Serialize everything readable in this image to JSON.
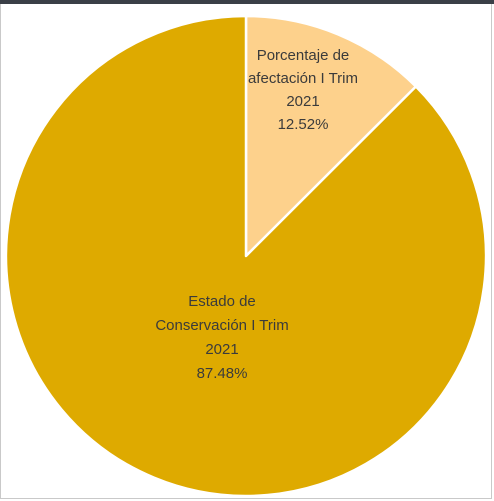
{
  "chart_data": {
    "type": "pie",
    "title": "",
    "slices": [
      {
        "label_lines": [
          "Porcentaje de",
          "afectación I Trim",
          "2021"
        ],
        "value_label": "12.52%",
        "value": 12.52,
        "color": "#fdd18c"
      },
      {
        "label_lines": [
          "Estado de",
          "Conservación I Trim",
          "2021"
        ],
        "value_label": "87.48%",
        "value": 87.48,
        "color": "#deaa00"
      }
    ],
    "start_angle_deg": 0,
    "direction": "clockwise",
    "slice_border_color": "#ffffff",
    "legend": "none"
  }
}
